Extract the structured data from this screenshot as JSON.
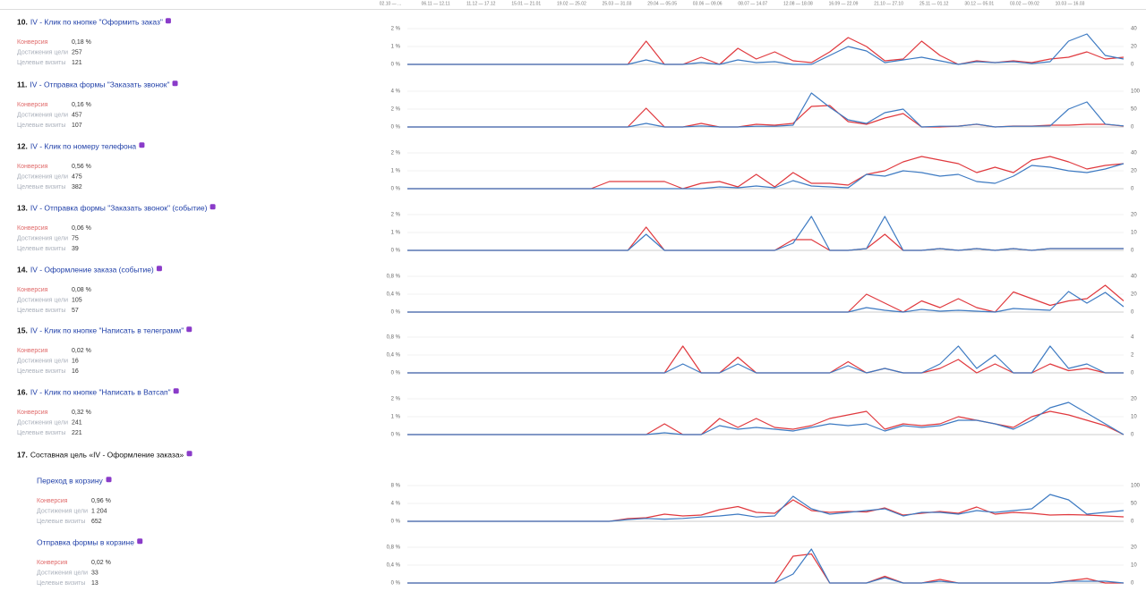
{
  "date_labels": [
    "02.10 — ...",
    "06.11 — 12.11",
    "11.12 — 17.12",
    "15.01 — 21.01",
    "19.02 — 25.02",
    "25.03 — 31.03",
    "29.04 — 05.05",
    "03.06 — 09.06",
    "08.07 — 14.07",
    "12.08 — 18.08",
    "16.09 — 22.09",
    "21.10 — 27.10",
    "25.11 — 01.12",
    "30.12 — 05.01",
    "03.02 — 09.02",
    "10.03 — 16.03"
  ],
  "stat_labels": [
    "Конверсия",
    "Достижения цели",
    "Целевые визиты"
  ],
  "goals": [
    {
      "number": "10.",
      "title": "IV - Клик по кнопке \"Оформить заказ\"",
      "conversion": "0,18 %",
      "reached": 257,
      "visits": 121
    },
    {
      "number": "11.",
      "title": "IV - Отправка формы \"Заказать звонок\"",
      "conversion": "0,16 %",
      "reached": 457,
      "visits": 107
    },
    {
      "number": "12.",
      "title": "IV - Клик по номеру телефона",
      "conversion": "0,56 %",
      "reached": 475,
      "visits": 382
    },
    {
      "number": "13.",
      "title": "IV - Отправка формы \"Заказать звонок\" (событие)",
      "conversion": "0,06 %",
      "reached": 75,
      "visits": 39
    },
    {
      "number": "14.",
      "title": "IV - Оформление заказа (событие)",
      "conversion": "0,08 %",
      "reached": 105,
      "visits": 57
    },
    {
      "number": "15.",
      "title": "IV - Клик по кнопке \"Написать в телеграмм\"",
      "conversion": "0,02 %",
      "reached": 16,
      "visits": 16
    },
    {
      "number": "16.",
      "title": "IV - Клик по кнопке \"Написать в Ватсап\"",
      "conversion": "0,32 %",
      "reached": 241,
      "visits": 221
    },
    {
      "number": "17.",
      "title": "Составная цель «IV - Оформление заказа»",
      "steps": [
        {
          "title": "Переход в корзину",
          "conversion": "0,96 %",
          "reached": "1 204",
          "visits": 652
        },
        {
          "title": "Отправка формы в корзине",
          "conversion": "0,02 %",
          "reached": 33,
          "visits": 13
        }
      ]
    }
  ],
  "chart_data": [
    {
      "type": "line",
      "ylim": [
        0,
        2
      ],
      "yticks": [
        {
          "value": 0,
          "label": "0 %"
        },
        {
          "value": 1,
          "label": "1 %"
        },
        {
          "value": 2,
          "label": "2 %"
        }
      ],
      "y2lim": [
        0,
        40
      ],
      "y2ticks": [
        0,
        20,
        40
      ],
      "grid": true,
      "series": [
        {
          "color": "#e0393e",
          "axis": "y",
          "values": [
            0,
            0,
            0,
            0,
            0,
            0,
            0,
            0,
            0,
            0,
            0,
            0,
            0,
            1.3,
            0,
            0,
            0.4,
            0,
            0.9,
            0.3,
            0.7,
            0.2,
            0.1,
            0.7,
            1.5,
            1.0,
            0.2,
            0.3,
            1.3,
            0.5,
            0,
            0.2,
            0.1,
            0.2,
            0.1,
            0.3,
            0.4,
            0.7,
            0.3,
            0.4
          ]
        },
        {
          "color": "#3d7ac2",
          "axis": "y2",
          "values": [
            0,
            0,
            0,
            0,
            0,
            0,
            0,
            0,
            0,
            0,
            0,
            0,
            0,
            5,
            0,
            0,
            2,
            0,
            5,
            2,
            3,
            0,
            0,
            10,
            20,
            15,
            2,
            5,
            8,
            4,
            0,
            3,
            2,
            3,
            1,
            3,
            26,
            34,
            10,
            6
          ]
        }
      ]
    },
    {
      "type": "line",
      "ylim": [
        0,
        4
      ],
      "yticks": [
        {
          "value": 0,
          "label": "0 %"
        },
        {
          "value": 2,
          "label": "2 %"
        },
        {
          "value": 4,
          "label": "4 %"
        }
      ],
      "y2lim": [
        0,
        100
      ],
      "y2ticks": [
        0,
        50,
        100
      ],
      "grid": true,
      "series": [
        {
          "color": "#e0393e",
          "axis": "y",
          "values": [
            0,
            0,
            0,
            0,
            0,
            0,
            0,
            0,
            0,
            0,
            0,
            0,
            0,
            2.1,
            0,
            0,
            0.4,
            0,
            0,
            0.3,
            0.2,
            0.4,
            2.3,
            2.4,
            0.6,
            0.3,
            1.0,
            1.5,
            0,
            0,
            0.1,
            0.3,
            0,
            0.1,
            0.1,
            0.2,
            0.2,
            0.3,
            0.3,
            0.1
          ]
        },
        {
          "color": "#3d7ac2",
          "axis": "y2",
          "values": [
            0,
            0,
            0,
            0,
            0,
            0,
            0,
            0,
            0,
            0,
            0,
            0,
            0,
            10,
            0,
            0,
            3,
            0,
            0,
            2,
            2,
            5,
            95,
            55,
            20,
            10,
            40,
            50,
            0,
            2,
            2,
            8,
            0,
            2,
            2,
            3,
            50,
            70,
            8,
            3
          ]
        }
      ]
    },
    {
      "type": "line",
      "ylim": [
        0,
        2
      ],
      "yticks": [
        {
          "value": 0,
          "label": "0 %"
        },
        {
          "value": 1,
          "label": "1 %"
        },
        {
          "value": 2,
          "label": "2 %"
        }
      ],
      "y2lim": [
        0,
        40
      ],
      "y2ticks": [
        0,
        20,
        40
      ],
      "grid": true,
      "series": [
        {
          "color": "#e0393e",
          "axis": "y",
          "values": [
            0,
            0,
            0,
            0,
            0,
            0,
            0,
            0,
            0,
            0,
            0,
            0.4,
            0.4,
            0.4,
            0.4,
            0,
            0.3,
            0.4,
            0.1,
            0.8,
            0.1,
            0.9,
            0.3,
            0.3,
            0.2,
            0.8,
            1.0,
            1.5,
            1.8,
            1.6,
            1.4,
            0.9,
            1.2,
            0.9,
            1.6,
            1.8,
            1.5,
            1.1,
            1.3,
            1.4
          ]
        },
        {
          "color": "#3d7ac2",
          "axis": "y2",
          "values": [
            0,
            0,
            0,
            0,
            0,
            0,
            0,
            0,
            0,
            0,
            0,
            0,
            0,
            0,
            0,
            0,
            0,
            2,
            1,
            3,
            1,
            9,
            3,
            2,
            1,
            16,
            14,
            20,
            18,
            14,
            16,
            8,
            6,
            14,
            26,
            24,
            20,
            18,
            22,
            28
          ]
        }
      ]
    },
    {
      "type": "line",
      "ylim": [
        0,
        2
      ],
      "yticks": [
        {
          "value": 0,
          "label": "0 %"
        },
        {
          "value": 1,
          "label": "1 %"
        },
        {
          "value": 2,
          "label": "2 %"
        }
      ],
      "y2lim": [
        0,
        20
      ],
      "y2ticks": [
        0,
        10,
        20
      ],
      "grid": true,
      "series": [
        {
          "color": "#e0393e",
          "axis": "y",
          "values": [
            0,
            0,
            0,
            0,
            0,
            0,
            0,
            0,
            0,
            0,
            0,
            0,
            0,
            1.3,
            0,
            0,
            0,
            0,
            0,
            0,
            0,
            0.6,
            0.6,
            0,
            0,
            0.1,
            0.9,
            0,
            0,
            0.1,
            0,
            0.1,
            0,
            0.1,
            0,
            0.1,
            0.1,
            0.1,
            0.1,
            0.1
          ]
        },
        {
          "color": "#3d7ac2",
          "axis": "y2",
          "values": [
            0,
            0,
            0,
            0,
            0,
            0,
            0,
            0,
            0,
            0,
            0,
            0,
            0,
            9,
            0,
            0,
            0,
            0,
            0,
            0,
            0,
            4,
            19,
            0,
            0,
            1,
            19,
            0,
            0,
            1,
            0,
            1,
            0,
            1,
            0,
            1,
            1,
            1,
            1,
            1
          ]
        }
      ]
    },
    {
      "type": "line",
      "ylim": [
        0,
        0.8
      ],
      "yticks": [
        {
          "value": 0,
          "label": "0 %"
        },
        {
          "value": 0.4,
          "label": "0,4 %"
        },
        {
          "value": 0.8,
          "label": "0,8 %"
        }
      ],
      "y2lim": [
        0,
        40
      ],
      "y2ticks": [
        0,
        20,
        40
      ],
      "grid": true,
      "series": [
        {
          "color": "#e0393e",
          "axis": "y",
          "values": [
            0,
            0,
            0,
            0,
            0,
            0,
            0,
            0,
            0,
            0,
            0,
            0,
            0,
            0,
            0,
            0,
            0,
            0,
            0,
            0,
            0,
            0,
            0,
            0,
            0,
            0.4,
            0.2,
            0,
            0.25,
            0.1,
            0.3,
            0.1,
            0,
            0.45,
            0.3,
            0.15,
            0.25,
            0.3,
            0.6,
            0.25
          ]
        },
        {
          "color": "#3d7ac2",
          "axis": "y2",
          "values": [
            0,
            0,
            0,
            0,
            0,
            0,
            0,
            0,
            0,
            0,
            0,
            0,
            0,
            0,
            0,
            0,
            0,
            0,
            0,
            0,
            0,
            0,
            0,
            0,
            0,
            5,
            2,
            0,
            3,
            1,
            2,
            1,
            0,
            4,
            3,
            2,
            23,
            10,
            22,
            6
          ]
        }
      ]
    },
    {
      "type": "line",
      "ylim": [
        0,
        0.8
      ],
      "yticks": [
        {
          "value": 0,
          "label": "0 %"
        },
        {
          "value": 0.4,
          "label": "0,4 %"
        },
        {
          "value": 0.8,
          "label": "0,8 %"
        }
      ],
      "y2lim": [
        0,
        4
      ],
      "y2ticks": [
        0,
        2,
        4
      ],
      "grid": true,
      "series": [
        {
          "color": "#e0393e",
          "axis": "y",
          "values": [
            0,
            0,
            0,
            0,
            0,
            0,
            0,
            0,
            0,
            0,
            0,
            0,
            0,
            0,
            0,
            0.6,
            0,
            0,
            0.35,
            0,
            0,
            0,
            0,
            0,
            0.25,
            0,
            0.1,
            0,
            0,
            0.1,
            0.3,
            0,
            0.2,
            0,
            0,
            0.2,
            0.05,
            0.1,
            0,
            0
          ]
        },
        {
          "color": "#3d7ac2",
          "axis": "y2",
          "values": [
            0,
            0,
            0,
            0,
            0,
            0,
            0,
            0,
            0,
            0,
            0,
            0,
            0,
            0,
            0,
            1,
            0,
            0,
            1,
            0,
            0,
            0,
            0,
            0,
            0.8,
            0,
            0.5,
            0,
            0,
            1,
            3,
            0.5,
            2,
            0,
            0,
            3,
            0.5,
            1,
            0,
            0
          ]
        }
      ]
    },
    {
      "type": "line",
      "ylim": [
        0,
        2
      ],
      "yticks": [
        {
          "value": 0,
          "label": "0 %"
        },
        {
          "value": 1,
          "label": "1 %"
        },
        {
          "value": 2,
          "label": "2 %"
        }
      ],
      "y2lim": [
        0,
        20
      ],
      "y2ticks": [
        0,
        10,
        20
      ],
      "grid": true,
      "series": [
        {
          "color": "#e0393e",
          "axis": "y",
          "values": [
            0,
            0,
            0,
            0,
            0,
            0,
            0,
            0,
            0,
            0,
            0,
            0,
            0,
            0,
            0.6,
            0,
            0,
            0.9,
            0.4,
            0.9,
            0.4,
            0.3,
            0.5,
            0.9,
            1.1,
            1.3,
            0.3,
            0.6,
            0.5,
            0.6,
            1.0,
            0.8,
            0.6,
            0.4,
            1.0,
            1.3,
            1.1,
            0.8,
            0.5,
            0
          ]
        },
        {
          "color": "#3d7ac2",
          "axis": "y2",
          "values": [
            0,
            0,
            0,
            0,
            0,
            0,
            0,
            0,
            0,
            0,
            0,
            0,
            0,
            0,
            1,
            0,
            0,
            5,
            3,
            4,
            3,
            2,
            4,
            6,
            5,
            6,
            2,
            5,
            4,
            5,
            8,
            8,
            6,
            3,
            8,
            15,
            18,
            12,
            6,
            0
          ]
        }
      ]
    },
    {
      "type": "line",
      "ylim": [
        0,
        8
      ],
      "yticks": [
        {
          "value": 0,
          "label": "0 %"
        },
        {
          "value": 4,
          "label": "4 %"
        },
        {
          "value": 8,
          "label": "8 %"
        }
      ],
      "y2lim": [
        0,
        100
      ],
      "y2ticks": [
        0,
        50,
        100
      ],
      "grid": true,
      "series": [
        {
          "color": "#e0393e",
          "axis": "y",
          "values": [
            0,
            0,
            0,
            0,
            0,
            0,
            0,
            0,
            0,
            0,
            0,
            0,
            0.6,
            0.8,
            1.6,
            1.2,
            1.4,
            2.6,
            3.3,
            2.0,
            1.8,
            4.8,
            2.4,
            2.0,
            2.2,
            2.1,
            3.0,
            1.4,
            1.8,
            2.2,
            1.8,
            3.2,
            1.6,
            2.0,
            1.8,
            1.4,
            1.5,
            1.4,
            1.2,
            1.0
          ]
        },
        {
          "color": "#3d7ac2",
          "axis": "y2",
          "values": [
            0,
            0,
            0,
            0,
            0,
            0,
            0,
            0,
            0,
            0,
            0,
            0,
            5,
            8,
            6,
            8,
            12,
            15,
            20,
            12,
            15,
            70,
            35,
            20,
            25,
            30,
            35,
            15,
            25,
            25,
            20,
            30,
            25,
            30,
            35,
            75,
            60,
            20,
            25,
            30
          ]
        }
      ]
    },
    {
      "type": "line",
      "ylim": [
        0,
        0.8
      ],
      "yticks": [
        {
          "value": 0,
          "label": "0 %"
        },
        {
          "value": 0.4,
          "label": "0,4 %"
        },
        {
          "value": 0.8,
          "label": "0,8 %"
        }
      ],
      "y2lim": [
        0,
        20
      ],
      "y2ticks": [
        0,
        10,
        20
      ],
      "grid": true,
      "series": [
        {
          "color": "#e0393e",
          "axis": "y",
          "values": [
            0,
            0,
            0,
            0,
            0,
            0,
            0,
            0,
            0,
            0,
            0,
            0,
            0,
            0,
            0,
            0,
            0,
            0,
            0,
            0,
            0,
            0.6,
            0.65,
            0,
            0,
            0,
            0.15,
            0,
            0,
            0.08,
            0,
            0,
            0,
            0,
            0,
            0,
            0.05,
            0.1,
            0,
            0
          ]
        },
        {
          "color": "#3d7ac2",
          "axis": "y2",
          "values": [
            0,
            0,
            0,
            0,
            0,
            0,
            0,
            0,
            0,
            0,
            0,
            0,
            0,
            0,
            0,
            0,
            0,
            0,
            0,
            0,
            0,
            5,
            19,
            0,
            0,
            0,
            3,
            0,
            0,
            1,
            0,
            0,
            0,
            0,
            0,
            0,
            1,
            1,
            1,
            0
          ]
        }
      ]
    }
  ]
}
